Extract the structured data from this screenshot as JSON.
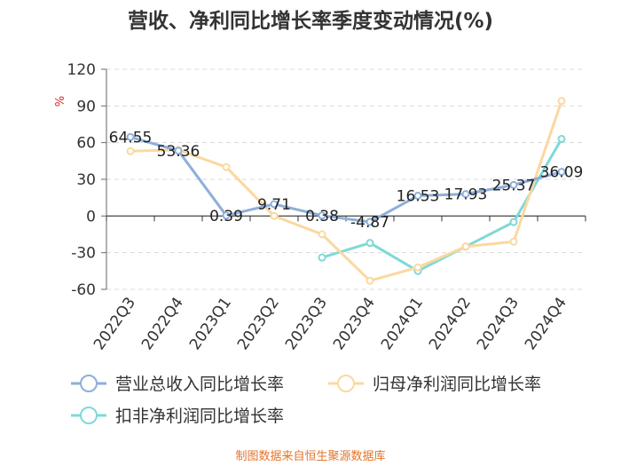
{
  "chart_data": {
    "type": "line",
    "title": "营收、净利同比增长率季度变动情况(%)",
    "ylabel": "%",
    "categories": [
      "2022Q3",
      "2022Q4",
      "2023Q1",
      "2023Q2",
      "2023Q3",
      "2023Q4",
      "2024Q1",
      "2024Q2",
      "2024Q3",
      "2024Q4"
    ],
    "ylim": [
      -60,
      120
    ],
    "yticks": [
      120,
      90,
      60,
      30,
      0,
      -30,
      -60
    ],
    "grid": true,
    "legend_position": "bottom",
    "series": [
      {
        "name": "营业总收入同比增长率",
        "color": "#8eafd9",
        "values": [
          64.55,
          53.36,
          0.39,
          9.71,
          0.38,
          -4.87,
          16.53,
          17.93,
          25.37,
          36.09
        ],
        "labels": [
          "64.55",
          "53.36",
          "0.39",
          "9.71",
          "0.38",
          "-4.87",
          "16.53",
          "17.93",
          "25.37",
          "36.09"
        ]
      },
      {
        "name": "归母净利润同比增长率",
        "color": "#fbd8a0",
        "values": [
          53,
          54,
          40,
          0,
          -15,
          -53,
          -42,
          -25,
          -21,
          94
        ]
      },
      {
        "name": "扣非净利润同比增长率",
        "color": "#7fd9d6",
        "values": [
          null,
          null,
          null,
          null,
          -34,
          -22,
          -45,
          -25,
          -5,
          63
        ]
      }
    ],
    "source": "制图数据来自恒生聚源数据库"
  }
}
